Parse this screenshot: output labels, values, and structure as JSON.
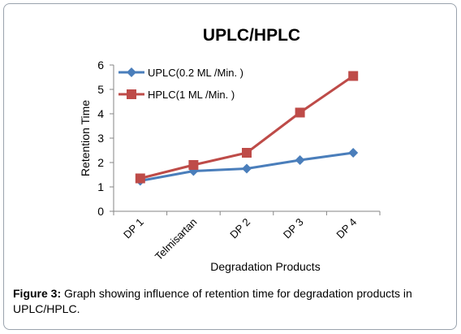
{
  "chart_data": {
    "type": "line",
    "title": "UPLC/HPLC",
    "xlabel": "Degradation Products",
    "ylabel": "Retention Time",
    "categories": [
      "DP 1",
      "Telmisartan",
      "DP 2",
      "DP 3",
      "DP 4"
    ],
    "ylim": [
      0,
      6
    ],
    "yticks": [
      "0",
      "1",
      "2",
      "3",
      "4",
      "5",
      "6"
    ],
    "grid": false,
    "legend_position": "top-left",
    "series": [
      {
        "name": "UPLC(0.2 ML /Min. )",
        "color": "#4a7ebb",
        "marker": "diamond",
        "values": [
          1.25,
          1.65,
          1.75,
          2.1,
          2.4
        ]
      },
      {
        "name": "HPLC(1 ML /Min. )",
        "color": "#be4b48",
        "marker": "square",
        "values": [
          1.35,
          1.9,
          2.4,
          4.05,
          5.55
        ]
      }
    ]
  },
  "caption": {
    "label": "Figure 3:",
    "text": " Graph showing influence of retention time for degradation products in UPLC/HPLC."
  }
}
